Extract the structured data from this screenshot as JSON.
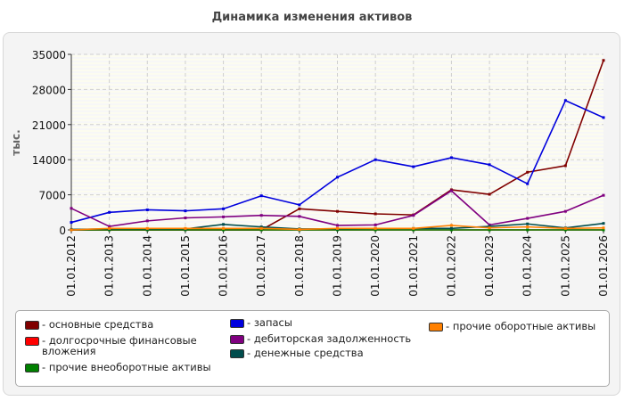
{
  "chart_data": {
    "type": "line",
    "title": "Динамика изменения активов",
    "ylabel": "тыс.",
    "xlabel": "",
    "ylim": [
      0,
      35000
    ],
    "yticks": [
      0,
      7000,
      14000,
      21000,
      28000,
      35000
    ],
    "categories": [
      "01.01.2012",
      "01.01.2013",
      "01.01.2014",
      "01.01.2015",
      "01.01.2016",
      "01.01.2017",
      "01.01.2018",
      "01.01.2019",
      "01.01.2020",
      "01.01.2021",
      "01.01.2022",
      "01.01.2023",
      "01.01.2024",
      "01.01.2025",
      "01.01.2026"
    ],
    "grid": true,
    "legend_position": "bottom",
    "series": [
      {
        "name": "основные средства",
        "color": "#800000",
        "values": [
          0,
          0,
          0,
          0,
          0,
          0,
          4200,
          3700,
          3200,
          3000,
          8000,
          7100,
          11500,
          12800,
          33800
        ]
      },
      {
        "name": "долгосрочные финансовые вложения",
        "color": "#ff0000",
        "values": [
          0,
          0,
          0,
          0,
          0,
          0,
          0,
          0,
          0,
          0,
          0,
          0,
          0,
          0,
          0
        ]
      },
      {
        "name": "прочие внеоборотные активы",
        "color": "#008000",
        "values": [
          0,
          0,
          0,
          0,
          0,
          0,
          0,
          0,
          0,
          0,
          0,
          0,
          0,
          0,
          0
        ]
      },
      {
        "name": "запасы",
        "color": "#0000dd",
        "values": [
          1500,
          3500,
          4000,
          3800,
          4200,
          6800,
          5000,
          10500,
          14000,
          12600,
          14400,
          13000,
          9200,
          25800,
          22400
        ]
      },
      {
        "name": "дебиторская задолженность",
        "color": "#800080",
        "values": [
          4300,
          700,
          1800,
          2400,
          2600,
          2900,
          2700,
          900,
          1000,
          2900,
          7800,
          1000,
          2300,
          3700,
          6900
        ]
      },
      {
        "name": "денежные средства",
        "color": "#004d4d",
        "values": [
          100,
          200,
          200,
          200,
          1100,
          600,
          200,
          200,
          300,
          300,
          300,
          700,
          1200,
          400,
          1300
        ]
      },
      {
        "name": "прочие оборотные активы",
        "color": "#ff8000",
        "values": [
          0,
          300,
          300,
          300,
          300,
          300,
          100,
          300,
          300,
          300,
          900,
          400,
          600,
          300,
          400
        ]
      }
    ]
  }
}
